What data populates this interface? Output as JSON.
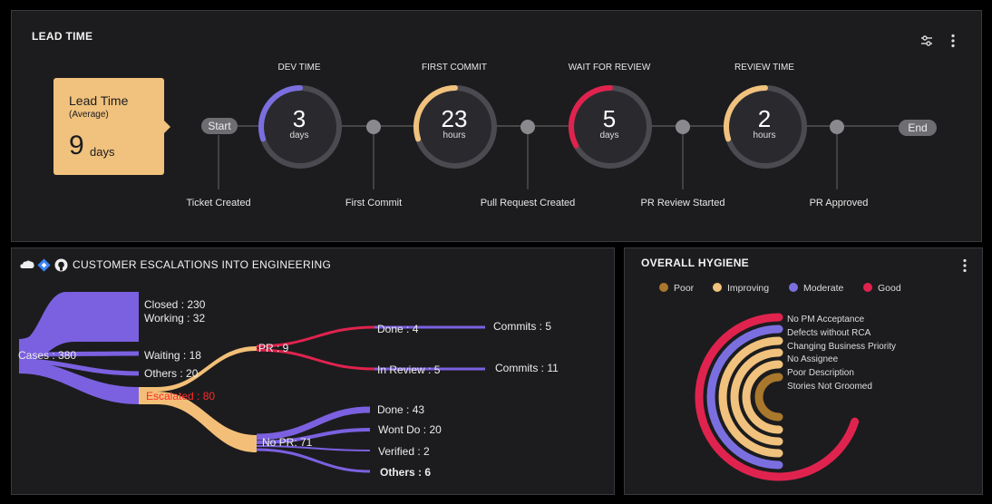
{
  "lead_time": {
    "title": "LEAD TIME",
    "card": {
      "title": "Lead Time",
      "subtitle": "(Average)",
      "value": "9",
      "unit": "days"
    },
    "start_label": "Start",
    "end_label": "End",
    "stages": [
      {
        "label": "DEV TIME",
        "value": "3",
        "unit": "days",
        "color": "#7b6fe0",
        "progress": 0.3
      },
      {
        "label": "FIRST COMMIT",
        "value": "23",
        "unit": "hours",
        "color": "#f0c27d",
        "progress": 0.3
      },
      {
        "label": "WAIT FOR REVIEW",
        "value": "5",
        "unit": "days",
        "color": "#e0234e",
        "progress": 0.33
      },
      {
        "label": "REVIEW TIME",
        "value": "2",
        "unit": "hours",
        "color": "#f0c27d",
        "progress": 0.3
      }
    ],
    "events": [
      "Ticket Created",
      "First Commit",
      "Pull Request Created",
      "PR Review Started",
      "PR Approved"
    ]
  },
  "escalations": {
    "title": "CUSTOMER ESCALATIONS INTO ENGINEERING",
    "icons": [
      "salesforce-icon",
      "jira-icon",
      "github-icon"
    ],
    "nodes": {
      "cases": "Cases : 380",
      "closed": "Closed : 230",
      "working": "Working : 32",
      "waiting": "Waiting : 18",
      "others": "Others : 20",
      "escalated": "Escalated : 80",
      "pr": "PR : 9",
      "done_pr": "Done : 4",
      "in_review": "In Review : 5",
      "commits_done": "Commits : 5",
      "commits_review": "Commits : 11",
      "no_pr": "No PR: 71",
      "done_nopr": "Done : 43",
      "wont_do": "Wont Do : 20",
      "verified": "Verified : 2",
      "others_nopr": "Others : 6"
    },
    "colors": {
      "purple": "#7b61e0",
      "orange": "#f3bf78",
      "red": "#e0234e",
      "red_text": "#ff2a2a"
    }
  },
  "hygiene": {
    "title": "OVERALL HYGIENE",
    "legend": [
      {
        "label": "Poor",
        "color": "#a9782c"
      },
      {
        "label": "Improving",
        "color": "#f0c27d"
      },
      {
        "label": "Moderate",
        "color": "#7b6fe0"
      },
      {
        "label": "Good",
        "color": "#e0234e"
      }
    ],
    "categories": [
      {
        "label": "No PM Acceptance",
        "color": "#e0234e",
        "fraction": 0.7
      },
      {
        "label": "Defects without RCA",
        "color": "#7b6fe0",
        "fraction": 0.5
      },
      {
        "label": "Changing Business Priority",
        "color": "#f0c27d",
        "fraction": 0.5
      },
      {
        "label": "No Assignee",
        "color": "#f0c27d",
        "fraction": 0.5
      },
      {
        "label": "Poor Description",
        "color": "#f0c27d",
        "fraction": 0.5
      },
      {
        "label": "Stories Not Groomed",
        "color": "#a9782c",
        "fraction": 0.5
      }
    ]
  }
}
